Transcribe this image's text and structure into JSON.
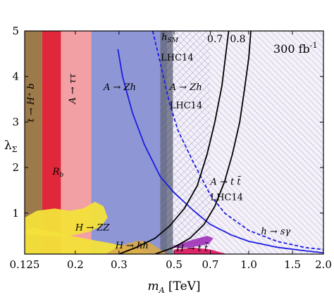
{
  "chart_data": {
    "type": "area",
    "title": "",
    "luminosity_label": "300 fb",
    "luminosity_exp": "-1",
    "xlabel": {
      "main": "m",
      "sub": "A",
      "unit": " [TeV]"
    },
    "ylabel": {
      "main": "λ",
      "sub": "Σ"
    },
    "xscale": "log",
    "xlim": [
      0.125,
      2.0
    ],
    "ylim": [
      0.1,
      5.0
    ],
    "grid": false,
    "x_ticks": [
      {
        "v": 0.125,
        "label": "0.125"
      },
      {
        "v": 0.2,
        "label": "0.2"
      },
      {
        "v": 0.3,
        "label": "0.3"
      },
      {
        "v": 0.5,
        "label": "0.5"
      },
      {
        "v": 0.7,
        "label": "0.7"
      },
      {
        "v": 1.0,
        "label": "1.0"
      },
      {
        "v": 1.5,
        "label": "1.5"
      },
      {
        "v": 2.0,
        "label": "2.0"
      }
    ],
    "y_ticks": [
      {
        "v": 1,
        "label": "1"
      },
      {
        "v": 2,
        "label": "2"
      },
      {
        "v": 3,
        "label": "3"
      },
      {
        "v": 4,
        "label": "4"
      },
      {
        "v": 5,
        "label": "5"
      }
    ],
    "colors": {
      "tHb": "#9c7a4a",
      "Rb": "#e0283a",
      "Atautau": "#f2a0a4",
      "AZh": "#8e96d6",
      "hSM": "#6b7080",
      "AZh_LHC14_hatch": "#5a5aa8",
      "Att_LHC14_hatch": "#a89cc8",
      "HZZ": "#f3e23a",
      "Hhh": "#d8a84a",
      "Htt": "#e0246a",
      "Att_purple": "#a030b8",
      "bsgamma": "#1c1ce0",
      "contour": "#000000"
    },
    "regions": [
      {
        "name": "tHb",
        "x": [
          0.125,
          0.147
        ],
        "ymax": 5.0
      },
      {
        "name": "Rb",
        "x": [
          0.147,
          0.175
        ],
        "ymax": 5.0
      },
      {
        "name": "Atautau",
        "x": [
          0.175,
          0.232
        ],
        "ymax": 5.0
      },
      {
        "name": "AZh",
        "x": [
          0.232,
          0.468
        ],
        "ymax": 5.0
      },
      {
        "name": "hSM",
        "x": [
          0.44,
          0.495
        ],
        "ymax": 5.0
      },
      {
        "name": "AZh_LHC14_hatch",
        "x": [
          0.44,
          0.7
        ],
        "ymax": 5.0
      },
      {
        "name": "Att_LHC14_hatch",
        "x": [
          0.495,
          2.0
        ],
        "ymax": 5.0
      }
    ],
    "HZZ_region": [
      [
        0.125,
        0.9
      ],
      [
        0.14,
        1.05
      ],
      [
        0.165,
        1.1
      ],
      [
        0.19,
        1.05
      ],
      [
        0.215,
        1.1
      ],
      [
        0.24,
        1.25
      ],
      [
        0.26,
        1.15
      ],
      [
        0.27,
        0.9
      ],
      [
        0.255,
        0.72
      ],
      [
        0.23,
        0.6
      ],
      [
        0.2,
        0.52
      ],
      [
        0.17,
        0.48
      ],
      [
        0.15,
        0.5
      ],
      [
        0.125,
        0.55
      ]
    ],
    "HZZ_lower": [
      [
        0.135,
        0.68
      ],
      [
        0.16,
        0.6
      ],
      [
        0.2,
        0.48
      ],
      [
        0.24,
        0.4
      ],
      [
        0.27,
        0.35
      ],
      [
        0.3,
        0.3
      ],
      [
        0.33,
        0.25
      ],
      [
        0.36,
        0.2
      ],
      [
        0.4,
        0.13
      ],
      [
        0.42,
        0.1
      ],
      [
        0.125,
        0.1
      ],
      [
        0.125,
        0.62
      ]
    ],
    "Hhh_region": [
      [
        0.265,
        0.1
      ],
      [
        0.285,
        0.2
      ],
      [
        0.32,
        0.32
      ],
      [
        0.36,
        0.4
      ],
      [
        0.4,
        0.35
      ],
      [
        0.44,
        0.2
      ],
      [
        0.47,
        0.1
      ]
    ],
    "Htt_region": [
      [
        0.5,
        0.1
      ],
      [
        0.5,
        0.2
      ],
      [
        0.6,
        0.24
      ],
      [
        0.7,
        0.2
      ],
      [
        0.78,
        0.13
      ],
      [
        0.82,
        0.1
      ]
    ],
    "Att_purple_region": [
      [
        0.495,
        0.28
      ],
      [
        0.6,
        0.42
      ],
      [
        0.68,
        0.5
      ],
      [
        0.72,
        0.45
      ],
      [
        0.69,
        0.32
      ],
      [
        0.58,
        0.24
      ],
      [
        0.495,
        0.24
      ]
    ],
    "bsgamma_solid": [
      [
        0.297,
        4.6
      ],
      [
        0.31,
        4.0
      ],
      [
        0.34,
        3.2
      ],
      [
        0.38,
        2.5
      ],
      [
        0.44,
        1.8
      ],
      [
        0.5,
        1.45
      ],
      [
        0.6,
        1.05
      ],
      [
        0.7,
        0.75
      ],
      [
        0.85,
        0.52
      ],
      [
        1.0,
        0.38
      ],
      [
        1.3,
        0.25
      ],
      [
        1.7,
        0.17
      ],
      [
        2.0,
        0.13
      ]
    ],
    "bsgamma_dashed": [
      [
        0.41,
        5.0
      ],
      [
        0.44,
        4.3
      ],
      [
        0.48,
        3.4
      ],
      [
        0.52,
        2.8
      ],
      [
        0.6,
        2.1
      ],
      [
        0.7,
        1.4
      ],
      [
        0.8,
        1.0
      ],
      [
        1.0,
        0.62
      ],
      [
        1.3,
        0.38
      ],
      [
        1.7,
        0.24
      ],
      [
        2.0,
        0.2
      ]
    ],
    "contour_07": [
      [
        0.3,
        0.1
      ],
      [
        0.35,
        0.24
      ],
      [
        0.42,
        0.45
      ],
      [
        0.48,
        0.72
      ],
      [
        0.55,
        1.1
      ],
      [
        0.62,
        1.6
      ],
      [
        0.68,
        2.3
      ],
      [
        0.73,
        3.0
      ],
      [
        0.78,
        3.8
      ],
      [
        0.8,
        4.3
      ],
      [
        0.83,
        5.0
      ]
    ],
    "contour_08": [
      [
        0.42,
        0.1
      ],
      [
        0.5,
        0.25
      ],
      [
        0.58,
        0.45
      ],
      [
        0.66,
        0.75
      ],
      [
        0.73,
        1.15
      ],
      [
        0.8,
        1.7
      ],
      [
        0.86,
        2.3
      ],
      [
        0.92,
        3.0
      ],
      [
        0.96,
        3.7
      ],
      [
        1.0,
        4.4
      ],
      [
        1.02,
        5.0
      ]
    ],
    "annotations": [
      {
        "text": "t → H⁺ b",
        "x": 0.136,
        "y": 3.0,
        "rotate": -90
      },
      {
        "text": "A → ττ",
        "x": 0.2,
        "y": 3.4,
        "rotate": -90
      },
      {
        "text": "R",
        "sub": "b",
        "x": 0.162,
        "y": 1.85
      },
      {
        "text": "A → Zh",
        "x": 0.26,
        "y": 3.7
      },
      {
        "text": "h",
        "sub": "SM",
        "x": 0.445,
        "y": 4.8
      },
      {
        "text": "LHC14",
        "x": 0.442,
        "y": 4.35
      },
      {
        "text": "A → Zh",
        "x": 0.48,
        "y": 3.7
      },
      {
        "text": "LHC14",
        "x": 0.48,
        "y": 3.3
      },
      {
        "text": "A → t t̄",
        "x": 0.7,
        "y": 1.62
      },
      {
        "text": "LHC14",
        "x": 0.7,
        "y": 1.28
      },
      {
        "text": "h → sγ",
        "x": 1.12,
        "y": 0.53
      },
      {
        "text": "H → ZZ",
        "x": 0.2,
        "y": 0.62
      },
      {
        "text": "H → hh",
        "x": 0.29,
        "y": 0.22
      },
      {
        "text": "H → t t̄",
        "x": 0.51,
        "y": 0.16
      }
    ],
    "contour_labels": [
      {
        "text": "0.7",
        "x": 0.68,
        "y": 4.75
      },
      {
        "text": "0.8",
        "x": 0.84,
        "y": 4.75
      }
    ]
  }
}
